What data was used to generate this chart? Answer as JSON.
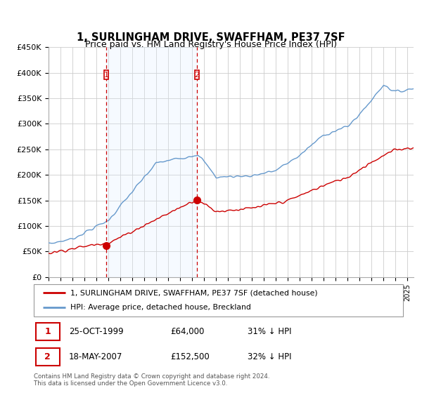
{
  "title": "1, SURLINGHAM DRIVE, SWAFFHAM, PE37 7SF",
  "subtitle": "Price paid vs. HM Land Registry's House Price Index (HPI)",
  "legend_line1": "1, SURLINGHAM DRIVE, SWAFFHAM, PE37 7SF (detached house)",
  "legend_line2": "HPI: Average price, detached house, Breckland",
  "footer": "Contains HM Land Registry data © Crown copyright and database right 2024.\nThis data is licensed under the Open Government Licence v3.0.",
  "sale1_date": 1999.82,
  "sale1_price": 64000,
  "sale1_label": "25-OCT-1999",
  "sale1_price_label": "£64,000",
  "sale1_hpi_label": "31% ↓ HPI",
  "sale2_date": 2007.38,
  "sale2_price": 152500,
  "sale2_label": "18-MAY-2007",
  "sale2_price_label": "£152,500",
  "sale2_hpi_label": "32% ↓ HPI",
  "red_color": "#cc0000",
  "blue_color": "#6699cc",
  "shade_color": "#ddeeff",
  "ylim": [
    0,
    450000
  ],
  "xlim": [
    1995,
    2025.5
  ],
  "yticks": [
    0,
    50000,
    100000,
    150000,
    200000,
    250000,
    300000,
    350000,
    400000,
    450000
  ],
  "ytick_labels": [
    "£0",
    "£50K",
    "£100K",
    "£150K",
    "£200K",
    "£250K",
    "£300K",
    "£350K",
    "£400K",
    "£450K"
  ]
}
